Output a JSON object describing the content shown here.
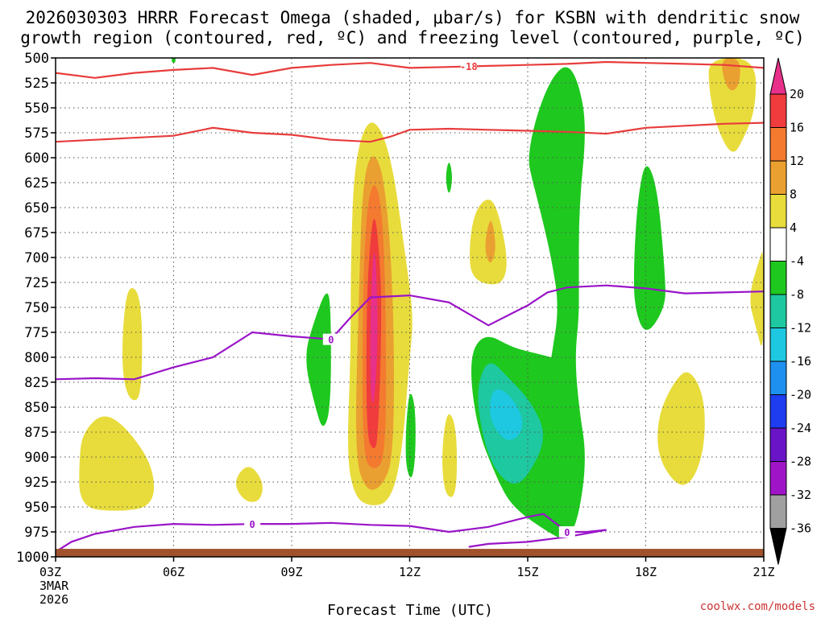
{
  "chart_data": {
    "type": "contour",
    "title_line1": "2026030303 HRRR Forecast Omega (shaded, μbar/s) for KSBN with dendritic snow",
    "title_line2": "growth region (contoured, red, ºC) and freezing level (contoured, purple, ºC)",
    "xlabel": "Forecast Time (UTC)",
    "credit": "coolwx.com/models",
    "x_range_hours": [
      3,
      21
    ],
    "y_range_hpa": [
      1000,
      500
    ],
    "x_ticks": [
      {
        "hour": 3,
        "label": "03Z",
        "extra": [
          "3MAR",
          "2026"
        ]
      },
      {
        "hour": 6,
        "label": "06Z"
      },
      {
        "hour": 9,
        "label": "09Z"
      },
      {
        "hour": 12,
        "label": "12Z"
      },
      {
        "hour": 15,
        "label": "15Z"
      },
      {
        "hour": 18,
        "label": "18Z"
      },
      {
        "hour": 21,
        "label": "21Z"
      }
    ],
    "y_ticks": [
      500,
      525,
      550,
      575,
      600,
      625,
      650,
      675,
      700,
      725,
      750,
      775,
      800,
      825,
      850,
      875,
      900,
      925,
      950,
      975,
      1000
    ],
    "colorbar": {
      "labels": [
        "20",
        "16",
        "12",
        "8",
        "4",
        "-4",
        "-8",
        "-12",
        "-16",
        "-20",
        "-24",
        "-28",
        "-32",
        "-36"
      ],
      "bins": [
        {
          "color": "#e8308a"
        },
        {
          "color": "#f03c3c"
        },
        {
          "color": "#f47a30"
        },
        {
          "color": "#eaa030"
        },
        {
          "color": "#e8dc3c"
        },
        {
          "color": "#ffffff"
        },
        {
          "color": "#1ec81e"
        },
        {
          "color": "#1ec8a0"
        },
        {
          "color": "#1ec8e0"
        },
        {
          "color": "#1e90f0"
        },
        {
          "color": "#1e3cf0"
        },
        {
          "color": "#6a14c8"
        },
        {
          "color": "#a014c8"
        },
        {
          "color": "#a0a0a0"
        },
        {
          "color": "#000000"
        }
      ]
    },
    "omega_regions": [
      {
        "name": "upward-motion-main-column",
        "pts": [
          [
            10.4,
            900
          ],
          [
            10.5,
            800
          ],
          [
            10.5,
            700
          ],
          [
            10.6,
            600
          ],
          [
            11.0,
            555
          ],
          [
            11.5,
            590
          ],
          [
            11.9,
            700
          ],
          [
            12.1,
            760
          ],
          [
            12.0,
            800
          ],
          [
            11.8,
            900
          ],
          [
            11.5,
            945
          ],
          [
            11.0,
            950
          ],
          [
            10.6,
            940
          ]
        ],
        "level": 4
      },
      {
        "name": "upward-motion-main-column-8",
        "pts": [
          [
            10.6,
            900
          ],
          [
            10.7,
            750
          ],
          [
            10.8,
            620
          ],
          [
            11.1,
            590
          ],
          [
            11.4,
            630
          ],
          [
            11.6,
            750
          ],
          [
            11.6,
            900
          ],
          [
            11.3,
            930
          ],
          [
            10.9,
            935
          ]
        ],
        "level": 8
      },
      {
        "name": "upward-motion-main-column-12",
        "pts": [
          [
            10.8,
            900
          ],
          [
            10.8,
            750
          ],
          [
            10.9,
            650
          ],
          [
            11.1,
            620
          ],
          [
            11.3,
            650
          ],
          [
            11.4,
            750
          ],
          [
            11.4,
            900
          ],
          [
            11.1,
            915
          ]
        ],
        "level": 12
      },
      {
        "name": "upward-motion-main-column-16",
        "pts": [
          [
            10.9,
            880
          ],
          [
            10.9,
            750
          ],
          [
            11.0,
            680
          ],
          [
            11.1,
            655
          ],
          [
            11.2,
            680
          ],
          [
            11.3,
            750
          ],
          [
            11.2,
            880
          ],
          [
            11.1,
            895
          ]
        ],
        "level": 16
      },
      {
        "name": "upward-motion-main-column-20",
        "pts": [
          [
            11.0,
            840
          ],
          [
            11.0,
            760
          ],
          [
            11.05,
            710
          ],
          [
            11.1,
            690
          ],
          [
            11.15,
            710
          ],
          [
            11.2,
            780
          ],
          [
            11.1,
            850
          ]
        ],
        "level": 20
      },
      {
        "name": "upward-motion-left-strip",
        "pts": [
          [
            4.7,
            770
          ],
          [
            4.85,
            725
          ],
          [
            5.2,
            740
          ],
          [
            5.2,
            840
          ],
          [
            4.9,
            845
          ],
          [
            4.7,
            820
          ]
        ],
        "level": 4
      },
      {
        "name": "upward-motion-lower-left",
        "pts": [
          [
            3.7,
            875
          ],
          [
            4.2,
            855
          ],
          [
            4.8,
            870
          ],
          [
            5.5,
            910
          ],
          [
            5.5,
            950
          ],
          [
            4.5,
            955
          ],
          [
            3.6,
            950
          ],
          [
            3.6,
            900
          ]
        ],
        "level": 4
      },
      {
        "name": "upward-motion-small-blob",
        "pts": [
          [
            7.5,
            925
          ],
          [
            7.9,
            905
          ],
          [
            8.3,
            925
          ],
          [
            8.2,
            945
          ],
          [
            7.8,
            945
          ]
        ],
        "level": 4
      },
      {
        "name": "upward-motion-mid-blob",
        "pts": [
          [
            13.5,
            700
          ],
          [
            13.6,
            660
          ],
          [
            13.9,
            640
          ],
          [
            14.2,
            645
          ],
          [
            14.5,
            700
          ],
          [
            14.4,
            725
          ],
          [
            14.0,
            728
          ],
          [
            13.6,
            720
          ]
        ],
        "level": 4
      },
      {
        "name": "upward-motion-mid-blob-8",
        "pts": [
          [
            13.9,
            690
          ],
          [
            14.0,
            665
          ],
          [
            14.1,
            662
          ],
          [
            14.2,
            690
          ],
          [
            14.1,
            705
          ],
          [
            14.0,
            705
          ]
        ],
        "level": 8
      },
      {
        "name": "upward-motion-low-blob",
        "pts": [
          [
            12.8,
            900
          ],
          [
            12.95,
            850
          ],
          [
            13.2,
            870
          ],
          [
            13.2,
            940
          ],
          [
            12.9,
            940
          ]
        ],
        "level": 4
      },
      {
        "name": "upward-motion-right-blob",
        "pts": [
          [
            18.3,
            860
          ],
          [
            18.7,
            825
          ],
          [
            19.1,
            810
          ],
          [
            19.5,
            840
          ],
          [
            19.5,
            890
          ],
          [
            19.2,
            925
          ],
          [
            18.8,
            930
          ],
          [
            18.3,
            900
          ]
        ],
        "level": 4
      },
      {
        "name": "upward-motion-top-right",
        "pts": [
          [
            19.6,
            500
          ],
          [
            20.8,
            500
          ],
          [
            20.8,
            550
          ],
          [
            20.5,
            580
          ],
          [
            20.2,
            600
          ],
          [
            19.8,
            570
          ],
          [
            19.6,
            530
          ]
        ],
        "level": 4
      },
      {
        "name": "upward-motion-top-right-8",
        "pts": [
          [
            19.9,
            500
          ],
          [
            20.4,
            500
          ],
          [
            20.4,
            525
          ],
          [
            20.2,
            535
          ],
          [
            20.0,
            525
          ]
        ],
        "level": 8
      },
      {
        "name": "upward-motion-right-edge",
        "pts": [
          [
            20.6,
            740
          ],
          [
            20.9,
            700
          ],
          [
            21.0,
            690
          ],
          [
            21.0,
            800
          ],
          [
            20.8,
            770
          ]
        ],
        "level": 4
      },
      {
        "name": "downward-motion-right-column",
        "pts": [
          [
            15.0,
            600
          ],
          [
            15.2,
            560
          ],
          [
            15.6,
            520
          ],
          [
            16.0,
            505
          ],
          [
            16.3,
            525
          ],
          [
            16.5,
            570
          ],
          [
            16.3,
            650
          ],
          [
            16.3,
            730
          ],
          [
            16.3,
            760
          ],
          [
            16.2,
            800
          ],
          [
            16.3,
            850
          ],
          [
            16.5,
            900
          ],
          [
            16.3,
            960
          ],
          [
            16.0,
            985
          ],
          [
            15.5,
            975
          ],
          [
            14.6,
            950
          ],
          [
            14.2,
            920
          ],
          [
            13.7,
            870
          ],
          [
            13.5,
            800
          ],
          [
            13.9,
            775
          ],
          [
            14.6,
            790
          ],
          [
            15.1,
            795
          ],
          [
            15.6,
            800
          ],
          [
            15.6,
            800
          ],
          [
            15.8,
            750
          ],
          [
            15.6,
            700
          ],
          [
            15.3,
            650
          ],
          [
            15.1,
            620
          ]
        ],
        "level": -4
      },
      {
        "name": "downward-motion-teal-core",
        "pts": [
          [
            13.8,
            870
          ],
          [
            13.7,
            830
          ],
          [
            14.0,
            800
          ],
          [
            14.5,
            820
          ],
          [
            15.1,
            845
          ],
          [
            15.5,
            880
          ],
          [
            15.0,
            920
          ],
          [
            14.6,
            930
          ],
          [
            14.1,
            910
          ]
        ],
        "level": -8
      },
      {
        "name": "downward-motion-cyan-core",
        "pts": [
          [
            14.0,
            860
          ],
          [
            14.1,
            830
          ],
          [
            14.5,
            835
          ],
          [
            14.9,
            860
          ],
          [
            14.8,
            880
          ],
          [
            14.4,
            885
          ]
        ],
        "level": -12
      },
      {
        "name": "downward-motion-left-green",
        "pts": [
          [
            9.3,
            800
          ],
          [
            9.6,
            760
          ],
          [
            9.9,
            730
          ],
          [
            10.0,
            750
          ],
          [
            10.0,
            850
          ],
          [
            9.8,
            875
          ],
          [
            9.6,
            850
          ]
        ],
        "level": -4
      },
      {
        "name": "downward-motion-right-green",
        "pts": [
          [
            17.7,
            700
          ],
          [
            17.8,
            640
          ],
          [
            18.0,
            600
          ],
          [
            18.3,
            630
          ],
          [
            18.5,
            720
          ],
          [
            18.5,
            750
          ],
          [
            18.0,
            780
          ],
          [
            17.7,
            750
          ]
        ],
        "level": -4
      },
      {
        "name": "downward-motion-thin-strip-1",
        "pts": [
          [
            11.9,
            870
          ],
          [
            12.0,
            830
          ],
          [
            12.15,
            850
          ],
          [
            12.15,
            900
          ],
          [
            12.05,
            925
          ],
          [
            11.9,
            910
          ]
        ],
        "level": -4
      },
      {
        "name": "downward-motion-thin-strip-2",
        "pts": [
          [
            12.9,
            620
          ],
          [
            13.0,
            600
          ],
          [
            13.1,
            620
          ],
          [
            13.0,
            640
          ]
        ],
        "level": -4
      },
      {
        "name": "downward-motion-top-dot",
        "pts": [
          [
            5.95,
            498
          ],
          [
            6.05,
            498
          ],
          [
            6.05,
            505
          ],
          [
            5.95,
            505
          ]
        ],
        "level": -4
      }
    ],
    "dgz_upper_contour": {
      "label": "-18",
      "pts": [
        [
          3,
          515
        ],
        [
          4,
          520
        ],
        [
          5,
          515
        ],
        [
          6,
          512
        ],
        [
          7,
          510
        ],
        [
          8,
          517
        ],
        [
          9,
          510
        ],
        [
          10,
          507
        ],
        [
          11,
          505
        ],
        [
          12,
          510
        ],
        [
          13,
          509
        ],
        [
          14,
          508
        ],
        [
          15,
          507
        ],
        [
          16,
          506
        ],
        [
          17,
          504
        ],
        [
          18,
          505
        ],
        [
          19,
          506
        ],
        [
          20,
          507
        ],
        [
          21,
          510
        ]
      ]
    },
    "dgz_lower_contour": {
      "pts": [
        [
          3,
          584
        ],
        [
          4,
          582
        ],
        [
          5,
          580
        ],
        [
          6,
          578
        ],
        [
          7,
          570
        ],
        [
          8,
          575
        ],
        [
          9,
          577
        ],
        [
          10,
          582
        ],
        [
          11,
          584
        ],
        [
          11.5,
          579
        ],
        [
          12,
          572
        ],
        [
          13,
          571
        ],
        [
          14,
          572
        ],
        [
          15,
          573
        ],
        [
          16,
          574
        ],
        [
          17,
          576
        ],
        [
          17.5,
          573
        ],
        [
          18,
          570
        ],
        [
          19,
          568
        ],
        [
          20,
          566
        ],
        [
          21,
          565
        ]
      ]
    },
    "freezing_level_contour_upper": {
      "label": "0",
      "pts": [
        [
          3,
          822
        ],
        [
          4,
          821
        ],
        [
          5,
          822
        ],
        [
          6,
          810
        ],
        [
          7,
          800
        ],
        [
          8,
          775
        ],
        [
          9,
          779
        ],
        [
          10,
          782
        ],
        [
          10.5,
          760
        ],
        [
          11,
          740
        ],
        [
          12,
          738
        ],
        [
          13,
          745
        ],
        [
          14,
          768
        ],
        [
          15,
          748
        ],
        [
          15.5,
          735
        ],
        [
          16,
          730
        ],
        [
          17,
          728
        ],
        [
          18,
          731
        ],
        [
          19,
          736
        ],
        [
          20,
          735
        ],
        [
          21,
          734
        ]
      ]
    },
    "freezing_level_contour_lower": {
      "label": "0",
      "pts": [
        [
          3,
          995
        ],
        [
          3.4,
          985
        ],
        [
          4,
          977
        ],
        [
          5,
          970
        ],
        [
          6,
          967
        ],
        [
          7,
          968
        ],
        [
          8,
          967
        ],
        [
          9,
          967
        ],
        [
          10,
          966
        ],
        [
          11,
          968
        ],
        [
          12,
          969
        ],
        [
          13,
          975
        ],
        [
          14,
          970
        ],
        [
          15,
          960
        ],
        [
          15.4,
          957
        ],
        [
          16,
          975
        ],
        [
          16.5,
          975
        ],
        [
          17,
          973
        ]
      ]
    },
    "freezing_level_contour_lower_return": {
      "pts": [
        [
          17,
          973
        ],
        [
          16,
          980
        ],
        [
          15,
          985
        ],
        [
          14,
          987
        ],
        [
          13.5,
          990
        ]
      ]
    },
    "terrain_top_hpa": 992
  }
}
